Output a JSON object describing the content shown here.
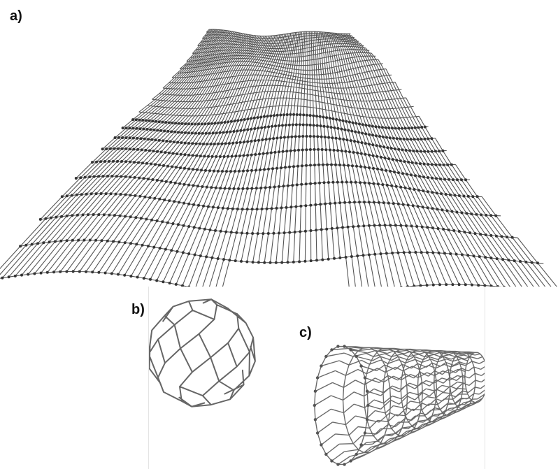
{
  "figure": {
    "panels": [
      {
        "label": "a)",
        "depicts": "graphene-sheet"
      },
      {
        "label": "b)",
        "depicts": "fullerene"
      },
      {
        "label": "c)",
        "depicts": "carbon-nanotube"
      }
    ],
    "colors": {
      "bond": "#555555",
      "atom": "#333333",
      "background": "#ffffff"
    }
  }
}
